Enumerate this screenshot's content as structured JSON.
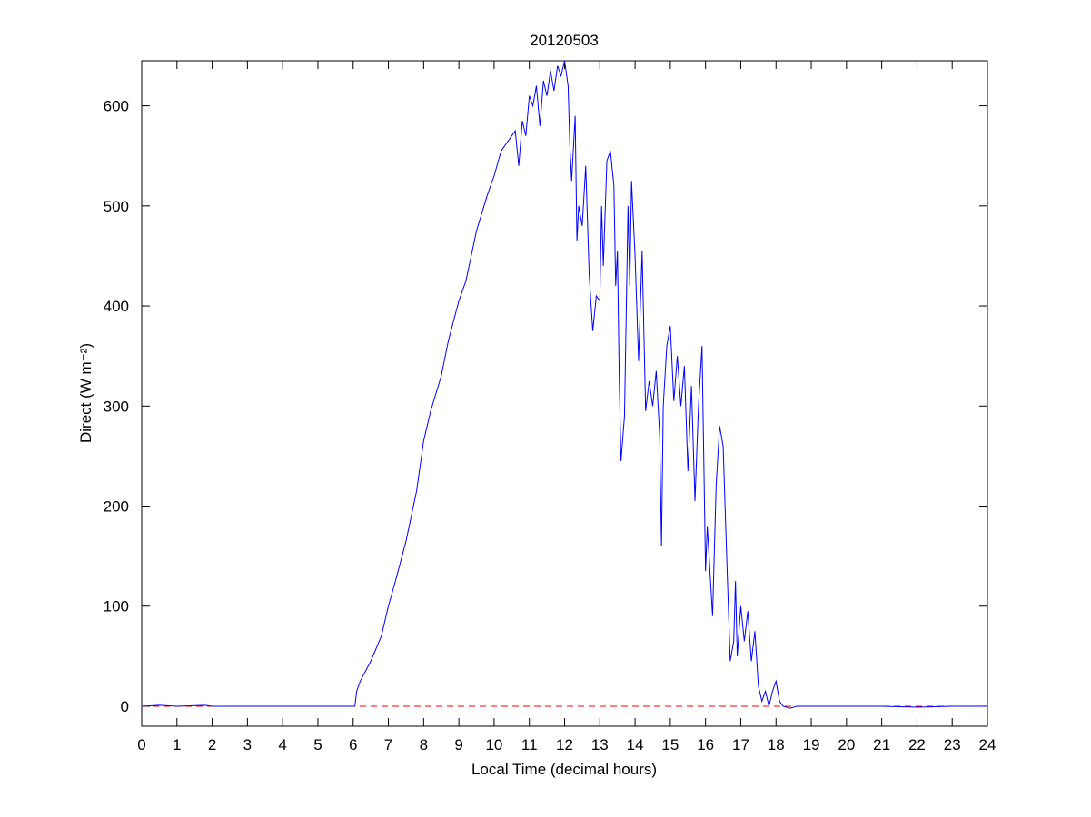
{
  "chart_data": {
    "type": "line",
    "title": "20120503",
    "xlabel": "Local Time (decimal hours)",
    "ylabel": "Direct (W m⁻²)",
    "xlim": [
      0,
      24
    ],
    "ylim": [
      -20,
      645
    ],
    "xticks": [
      0,
      1,
      2,
      3,
      4,
      5,
      6,
      7,
      8,
      9,
      10,
      11,
      12,
      13,
      14,
      15,
      16,
      17,
      18,
      19,
      20,
      21,
      22,
      23,
      24
    ],
    "yticks": [
      0,
      100,
      200,
      300,
      400,
      500,
      600
    ],
    "reference_line": {
      "value": 0,
      "color": "#ff0000",
      "style": "dashed"
    },
    "series": [
      {
        "name": "Direct",
        "color": "#0000ff",
        "x": [
          0,
          0.5,
          1,
          1.8,
          2,
          3,
          4,
          5,
          6,
          6.05,
          6.1,
          6.2,
          6.5,
          6.8,
          7,
          7.2,
          7.5,
          7.8,
          8,
          8.2,
          8.5,
          8.7,
          9,
          9.2,
          9.5,
          9.8,
          10,
          10.2,
          10.4,
          10.6,
          10.7,
          10.8,
          10.9,
          11,
          11.1,
          11.2,
          11.3,
          11.4,
          11.5,
          11.6,
          11.7,
          11.8,
          11.9,
          12,
          12.1,
          12.15,
          12.2,
          12.3,
          12.35,
          12.4,
          12.5,
          12.6,
          12.7,
          12.8,
          12.9,
          13,
          13.05,
          13.1,
          13.2,
          13.3,
          13.4,
          13.45,
          13.5,
          13.55,
          13.6,
          13.7,
          13.8,
          13.85,
          13.9,
          14,
          14.1,
          14.2,
          14.3,
          14.4,
          14.5,
          14.6,
          14.7,
          14.75,
          14.8,
          14.9,
          15,
          15.1,
          15.2,
          15.3,
          15.4,
          15.5,
          15.6,
          15.7,
          15.8,
          15.9,
          16,
          16.05,
          16.1,
          16.2,
          16.3,
          16.4,
          16.5,
          16.6,
          16.7,
          16.8,
          16.85,
          16.9,
          17,
          17.1,
          17.2,
          17.3,
          17.4,
          17.5,
          17.6,
          17.7,
          17.8,
          17.9,
          18,
          18.1,
          18.2,
          18.4,
          18.6,
          19,
          20,
          21,
          22,
          23,
          24
        ],
        "values": [
          0,
          1,
          0,
          1,
          0,
          0,
          0,
          0,
          0,
          0,
          15,
          25,
          45,
          70,
          100,
          125,
          165,
          215,
          265,
          295,
          330,
          365,
          405,
          425,
          475,
          510,
          530,
          555,
          565,
          575,
          540,
          585,
          570,
          610,
          600,
          620,
          580,
          625,
          610,
          635,
          615,
          640,
          630,
          645,
          620,
          560,
          525,
          590,
          465,
          500,
          480,
          540,
          430,
          375,
          410,
          405,
          500,
          440,
          545,
          555,
          520,
          420,
          455,
          330,
          245,
          290,
          500,
          420,
          525,
          450,
          345,
          455,
          295,
          325,
          300,
          335,
          270,
          160,
          300,
          360,
          380,
          305,
          350,
          300,
          340,
          235,
          320,
          205,
          300,
          360,
          135,
          180,
          150,
          90,
          220,
          280,
          260,
          150,
          45,
          65,
          125,
          50,
          100,
          65,
          95,
          45,
          75,
          20,
          5,
          15,
          0,
          15,
          25,
          5,
          0,
          -2,
          0,
          0,
          0,
          0,
          -1,
          0,
          0
        ]
      }
    ]
  }
}
